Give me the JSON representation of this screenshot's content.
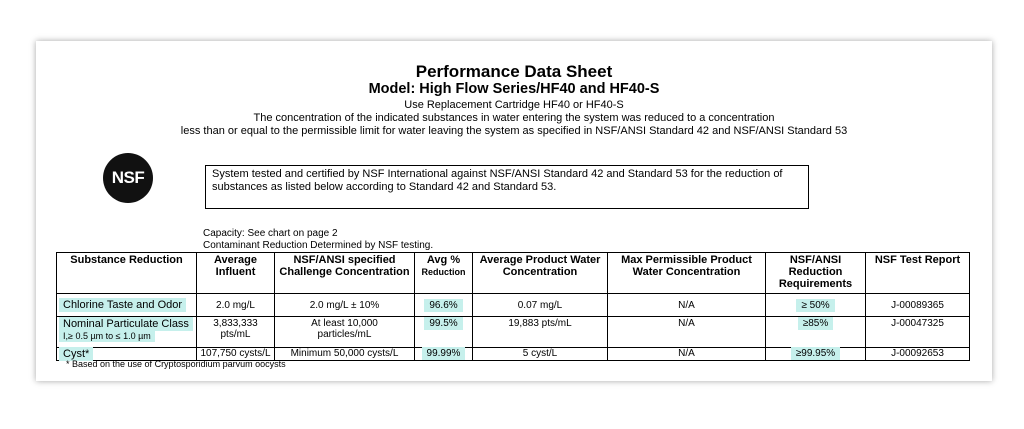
{
  "title": "Performance Data Sheet",
  "subtitle": "Model: High Flow Series/HF40 and HF40-S",
  "replacement": "Use Replacement Cartridge HF40 or HF40-S",
  "description_line1": "The concentration of the indicated substances in water entering the system was reduced to a concentration",
  "description_line2": "less than or equal to the permissible limit for water leaving the system as specified in NSF/ANSI Standard 42 and NSF/ANSI Standard 53",
  "logo_text": "NSF",
  "certification": "System tested and certified by NSF International against NSF/ANSI Standard 42 and Standard 53 for the reduction of substances as listed below according to Standard 42 and Standard 53.",
  "capacity": "Capacity:  See chart on page 2",
  "contaminant_note": "Contaminant Reduction Determined by NSF testing.",
  "table": {
    "headers": [
      "Substance Reduction",
      "Average Influent",
      "NSF/ANSI specified Challenge Concentration",
      "Avg %",
      "Reduction",
      "Average Product Water Concentration",
      "Max Permissible Product Water Concentration",
      "NSF/ANSI Reduction Requirements",
      "NSF Test Report"
    ],
    "rows": [
      {
        "substance": "Chlorine Taste and Odor",
        "influent": "2.0  mg/L",
        "challenge": "2.0 mg/L ± 10%",
        "avg_reduction": "96.6%",
        "product_conc": "0.07  mg/L",
        "max_permissible": "N/A",
        "requirement": "≥ 50%",
        "report": "J-00089365"
      },
      {
        "substance": "Nominal Particulate Class",
        "substance_sub": "I,≥ 0.5 µm to ≤ 1.0 µm",
        "influent": "3,833,333",
        "influent_unit": "pts/mL",
        "challenge": "At least 10,000",
        "challenge_unit": "particles/mL",
        "avg_reduction": "99.5%",
        "product_conc": "19,883  pts/mL",
        "max_permissible": "N/A",
        "requirement": "≥85%",
        "report": "J-00047325"
      },
      {
        "substance": "Cyst*",
        "influent": "107,750 cysts/L",
        "challenge": "Minimum 50,000 cysts/L",
        "avg_reduction": "99.99%",
        "product_conc": "5 cyst/L",
        "max_permissible": "N/A",
        "requirement": "≥99.95%",
        "report": "J-00092653"
      }
    ]
  },
  "footnote": "* Based on the use of Cryptosporidium parvum oocysts",
  "colors": {
    "highlight": "#c6f0ec"
  }
}
